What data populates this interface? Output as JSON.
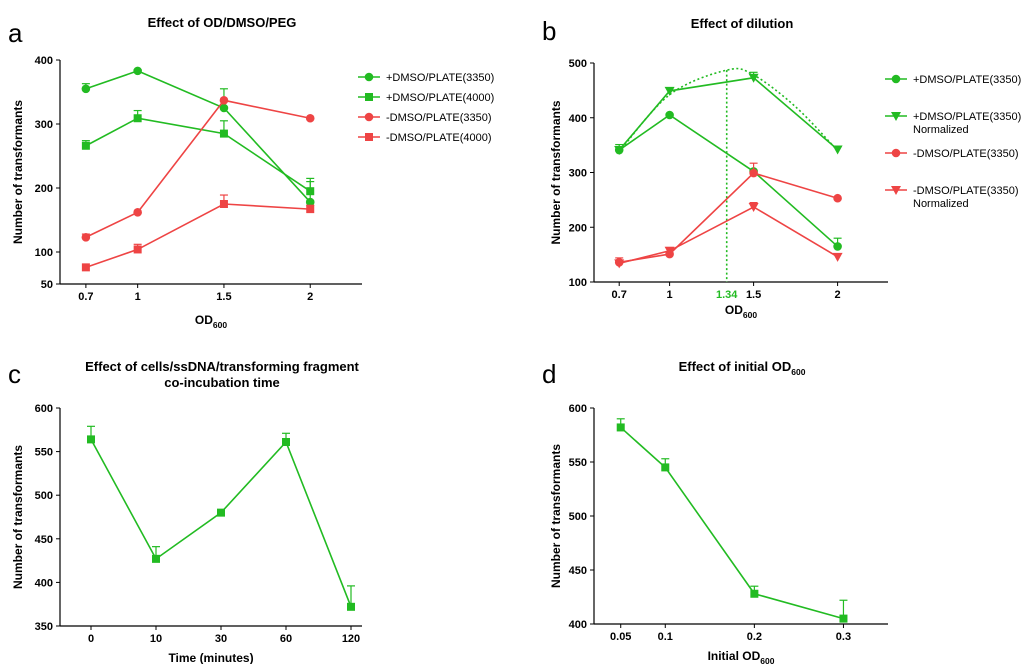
{
  "colors": {
    "green": "#22bb22",
    "red": "#ee4444"
  },
  "chart_data": [
    {
      "panel": "a",
      "type": "line",
      "title": "Effect of OD/DMSO/PEG",
      "xlabel": "OD",
      "xlabel_sub": "600",
      "ylabel": "Number of transformants",
      "categories": [
        "0.7",
        "1",
        "1.5",
        "2"
      ],
      "x": [
        0.7,
        1,
        1.5,
        2
      ],
      "xlim": [
        0.55,
        2.3
      ],
      "ylim": [
        50,
        400
      ],
      "yticks": [
        50,
        100,
        200,
        300,
        400
      ],
      "grid": false,
      "legend": "right",
      "series": [
        {
          "name": "+DMSO/PLATE(3350)",
          "color": "green",
          "marker": "circle",
          "values": [
            355,
            383,
            325,
            178
          ],
          "errors": [
            8,
            0,
            30,
            32
          ]
        },
        {
          "name": "+DMSO/PLATE(4000)",
          "color": "green",
          "marker": "square",
          "values": [
            266,
            309,
            285,
            195
          ],
          "errors": [
            8,
            12,
            20,
            20
          ]
        },
        {
          "name": "-DMSO/PLATE(3350)",
          "color": "red",
          "marker": "circle",
          "values": [
            123,
            162,
            337,
            309
          ],
          "errors": [
            5,
            0,
            0,
            0
          ]
        },
        {
          "name": "-DMSO/PLATE(4000)",
          "color": "red",
          "marker": "square",
          "values": [
            76,
            104,
            175,
            167
          ],
          "errors": [
            0,
            8,
            14,
            6
          ]
        }
      ]
    },
    {
      "panel": "b",
      "type": "line",
      "title": "Effect of dilution",
      "xlabel": "OD",
      "xlabel_sub": "600",
      "ylabel": "Number of transformants",
      "categories": [
        "0.7",
        "1",
        "1.5",
        "2"
      ],
      "x": [
        0.7,
        1,
        1.5,
        2
      ],
      "xlim": [
        0.55,
        2.3
      ],
      "ylim": [
        100,
        500
      ],
      "yticks": [
        100,
        200,
        300,
        400,
        500
      ],
      "grid": false,
      "legend": "right",
      "annotation": {
        "label": "1.34",
        "x": 1.34
      },
      "fit_curve": {
        "peak_x": 1.34,
        "peak_y": 487,
        "points": [
          [
            0.7,
            338
          ],
          [
            1.0,
            442
          ],
          [
            1.34,
            487
          ],
          [
            1.5,
            478
          ],
          [
            1.75,
            420
          ],
          [
            2.0,
            340
          ]
        ]
      },
      "series": [
        {
          "name": "+DMSO/PLATE(3350)",
          "color": "green",
          "marker": "circle",
          "values": [
            341,
            405,
            302,
            165
          ],
          "errors": [
            0,
            0,
            0,
            15
          ]
        },
        {
          "name": "+DMSO/PLATE(3350)",
          "name_line2": "Normalized",
          "color": "green",
          "marker": "tri-down",
          "values": [
            341,
            449,
            473,
            342
          ],
          "errors": [
            10,
            0,
            10,
            0
          ]
        },
        {
          "name": "-DMSO/PLATE(3350)",
          "color": "red",
          "marker": "circle",
          "values": [
            136,
            151,
            299,
            253
          ],
          "errors": [
            8,
            0,
            18,
            0
          ]
        },
        {
          "name": "-DMSO/PLATE(3350)",
          "name_line2": "Normalized",
          "color": "red",
          "marker": "tri-down",
          "values": [
            134,
            157,
            237,
            146
          ],
          "errors": [
            0,
            6,
            8,
            0
          ]
        }
      ]
    },
    {
      "panel": "c",
      "type": "line",
      "title": "Effect of cells/ssDNA/transforming fragment",
      "title_line2": "co-incubation time",
      "xlabel": "Time (minutes)",
      "ylabel": "Number of transformants",
      "categories": [
        "0",
        "10",
        "30",
        "60",
        "120"
      ],
      "ylim": [
        350,
        600
      ],
      "yticks": [
        350,
        400,
        450,
        500,
        550,
        600
      ],
      "grid": false,
      "series": [
        {
          "name": "",
          "color": "green",
          "marker": "square",
          "values": [
            564,
            427,
            480,
            561,
            372
          ],
          "errors": [
            15,
            14,
            0,
            10,
            24
          ]
        }
      ]
    },
    {
      "panel": "d",
      "type": "line",
      "title": "Effect of initial OD",
      "title_sub": "600",
      "xlabel": "Initial  OD",
      "xlabel_sub": "600",
      "ylabel": "Number of transformants",
      "categories": [
        "0.05",
        "0.1",
        "0.2",
        "0.3"
      ],
      "x": [
        0.05,
        0.1,
        0.2,
        0.3
      ],
      "xlim": [
        0.02,
        0.35
      ],
      "ylim": [
        400,
        600
      ],
      "yticks": [
        400,
        450,
        500,
        550,
        600
      ],
      "grid": false,
      "series": [
        {
          "name": "",
          "color": "green",
          "marker": "square",
          "values": [
            582,
            545,
            428,
            405
          ],
          "errors": [
            8,
            8,
            7,
            17
          ]
        }
      ]
    }
  ]
}
